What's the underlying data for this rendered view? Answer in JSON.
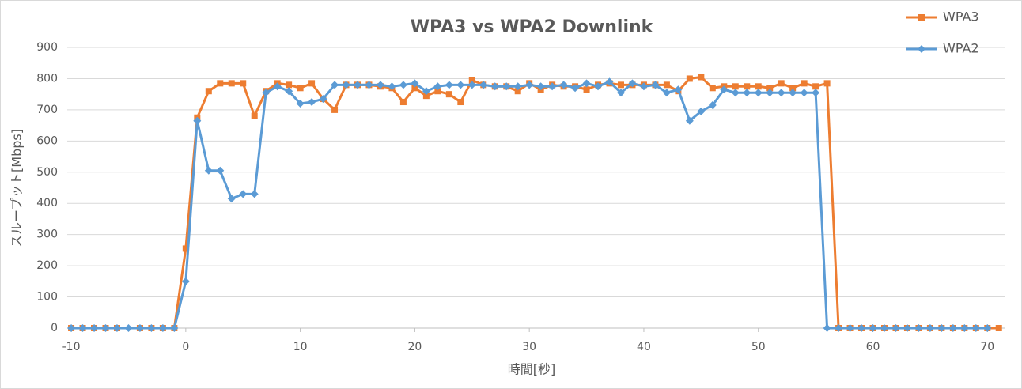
{
  "chart_data": {
    "type": "line",
    "title": "WPA3 vs WPA2   Downlink",
    "x_label": "時間[秒]",
    "y_label": "スループット[Mbps]",
    "xlim": [
      -10.35,
      71.5
    ],
    "xticks": [
      -10,
      0,
      10,
      20,
      30,
      40,
      50,
      60,
      70
    ],
    "ylim": [
      0,
      900
    ],
    "yticks": [
      0,
      100,
      200,
      300,
      400,
      500,
      600,
      700,
      800,
      900
    ],
    "grid": true,
    "legend": "top-right",
    "series": [
      {
        "name": "WPA3",
        "color": "#ed7d31",
        "marker": "square",
        "x": [
          -10,
          -9,
          -8,
          -7,
          -6,
          -4,
          -3,
          -2,
          -1,
          0,
          1,
          2,
          3,
          4,
          5,
          6,
          7,
          8,
          9,
          10,
          11,
          12,
          13,
          14,
          15,
          16,
          17,
          18,
          19,
          20,
          21,
          22,
          23,
          24,
          25,
          26,
          27,
          28,
          29,
          30,
          31,
          32,
          33,
          34,
          35,
          36,
          37,
          38,
          39,
          40,
          41,
          42,
          43,
          44,
          45,
          46,
          47,
          48,
          49,
          50,
          51,
          52,
          53,
          54,
          55,
          56,
          57,
          58,
          59,
          60,
          61,
          62,
          63,
          64,
          65,
          66,
          67,
          68,
          69,
          70,
          71
        ],
        "values": [
          0,
          0,
          0,
          0,
          0,
          0,
          0,
          0,
          0,
          255,
          675,
          760,
          785,
          785,
          785,
          680,
          760,
          785,
          780,
          770,
          785,
          735,
          700,
          780,
          780,
          780,
          775,
          770,
          725,
          770,
          745,
          760,
          750,
          725,
          795,
          780,
          775,
          775,
          760,
          785,
          765,
          780,
          775,
          775,
          765,
          780,
          785,
          780,
          780,
          780,
          780,
          780,
          760,
          800,
          805,
          770,
          775,
          775,
          775,
          775,
          770,
          785,
          770,
          785,
          775,
          785,
          0,
          0,
          0,
          0,
          0,
          0,
          0,
          0,
          0,
          0,
          0,
          0,
          0,
          0,
          0
        ]
      },
      {
        "name": "WPA2",
        "color": "#5b9bd5",
        "marker": "diamond",
        "x": [
          -10,
          -9,
          -8,
          -7,
          -6,
          -5,
          -4,
          -3,
          -2,
          -1,
          0,
          1,
          2,
          3,
          4,
          5,
          6,
          7,
          8,
          9,
          10,
          11,
          12,
          13,
          14,
          15,
          16,
          17,
          18,
          19,
          20,
          21,
          22,
          23,
          24,
          25,
          26,
          27,
          28,
          29,
          30,
          31,
          32,
          33,
          34,
          35,
          36,
          37,
          38,
          39,
          40,
          41,
          42,
          43,
          44,
          45,
          46,
          47,
          48,
          49,
          50,
          51,
          52,
          53,
          54,
          55,
          56,
          57,
          58,
          59,
          60,
          61,
          62,
          63,
          64,
          65,
          66,
          67,
          68,
          69,
          70
        ],
        "values": [
          0,
          0,
          0,
          0,
          0,
          0,
          0,
          0,
          0,
          0,
          150,
          665,
          505,
          505,
          415,
          430,
          430,
          755,
          775,
          760,
          720,
          725,
          735,
          780,
          780,
          780,
          780,
          780,
          775,
          780,
          785,
          760,
          775,
          780,
          780,
          780,
          780,
          775,
          775,
          775,
          780,
          775,
          775,
          780,
          770,
          785,
          775,
          790,
          755,
          785,
          775,
          780,
          755,
          765,
          665,
          695,
          715,
          765,
          755,
          755,
          755,
          755,
          755,
          755,
          755,
          755,
          0,
          0,
          0,
          0,
          0,
          0,
          0,
          0,
          0,
          0,
          0,
          0,
          0,
          0,
          0
        ]
      }
    ]
  }
}
